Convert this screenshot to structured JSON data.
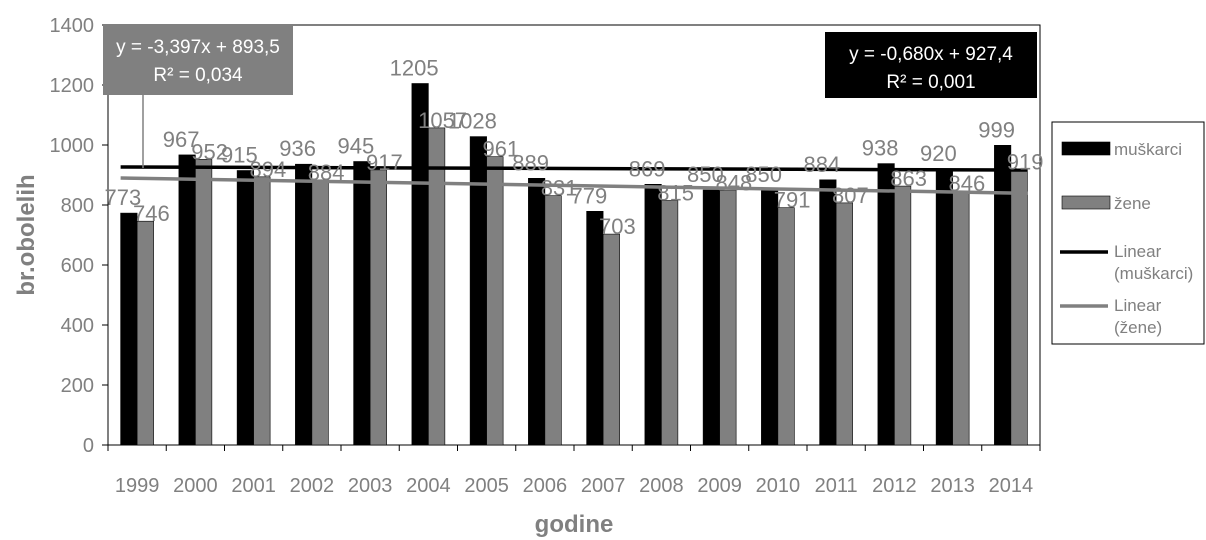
{
  "chart_data": {
    "type": "bar",
    "title": "",
    "xlabel": "godine",
    "ylabel": "br.obolelih",
    "ylim": [
      0,
      1400
    ],
    "yticks": [
      0,
      200,
      400,
      600,
      800,
      1000,
      1200,
      1400
    ],
    "grid": false,
    "legend_position": "right",
    "categories": [
      "1999",
      "2000",
      "2001",
      "2002",
      "2003",
      "2004",
      "2005",
      "2006",
      "2007",
      "2008",
      "2009",
      "2010",
      "2011",
      "2012",
      "2013",
      "2014"
    ],
    "series": [
      {
        "name": "muškarci",
        "color": "#000000",
        "values": [
          773,
          967,
          915,
          936,
          945,
          1205,
          1028,
          889,
          779,
          869,
          850,
          850,
          884,
          938,
          920,
          999
        ]
      },
      {
        "name": "žene",
        "color": "#808080",
        "values": [
          746,
          952,
          894,
          884,
          917,
          1057,
          961,
          831,
          703,
          815,
          848,
          791,
          807,
          863,
          846,
          919
        ]
      }
    ],
    "trendlines": [
      {
        "name": "Linear (muškarci)",
        "color": "#000000",
        "equation": "y = -0,680x + 927,4",
        "r2": "R² = 0,001",
        "slope": -0.68,
        "intercept": 927.4
      },
      {
        "name": "Linear (žene)",
        "color": "#808080",
        "equation": "y = -3,397x + 893,5",
        "r2": "R² = 0,034",
        "slope": -3.397,
        "intercept": 893.5
      }
    ]
  }
}
